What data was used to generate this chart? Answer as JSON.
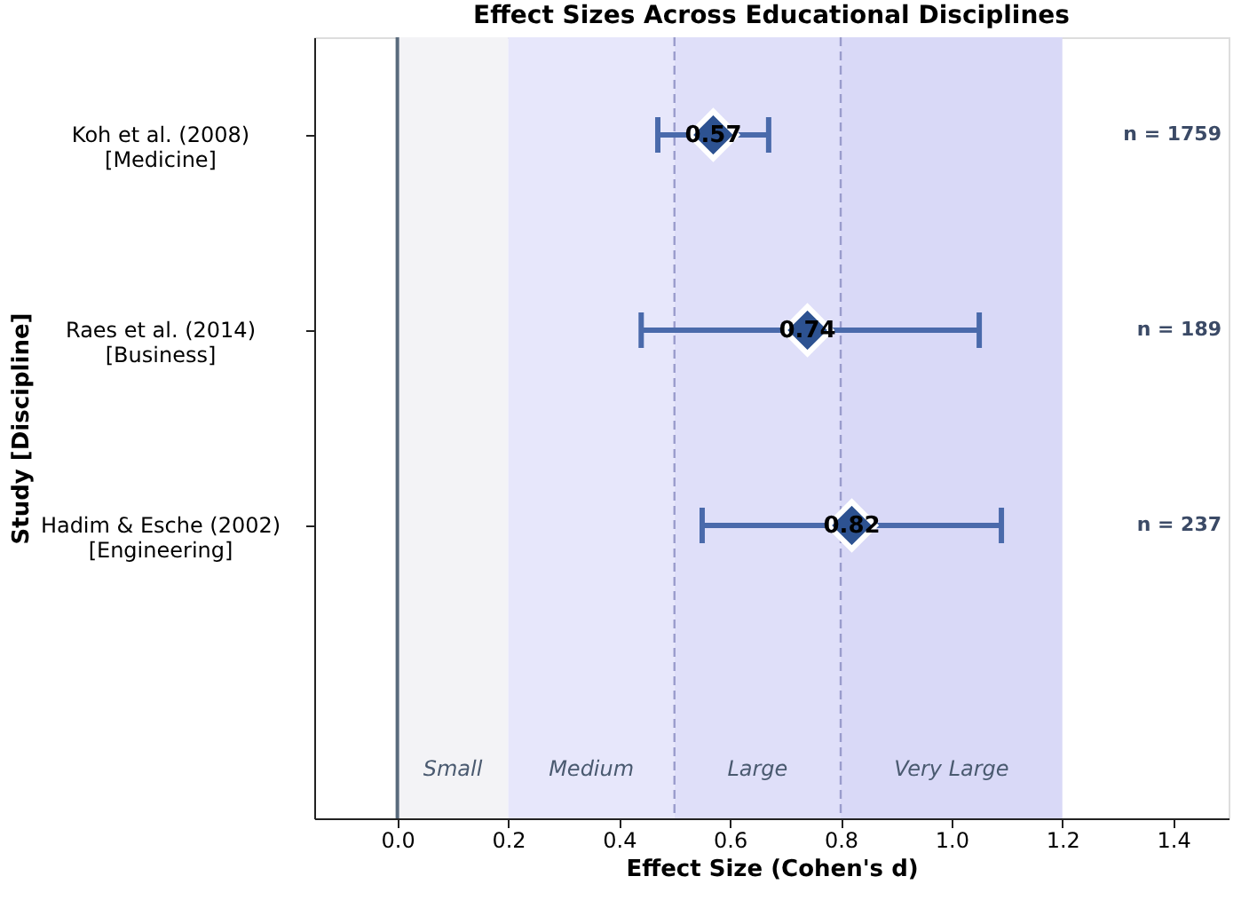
{
  "chart_data": {
    "type": "scatter",
    "title": "Effect Sizes Across Educational Disciplines",
    "xlabel": "Effect Size (Cohen's d)",
    "ylabel": "Study [Discipline]",
    "categories": [
      "Koh et al. (2008)\n[Medicine]",
      "Raes et al. (2014)\n[Business]",
      "Hadim & Esche (2002)\n[Engineering]"
    ],
    "orientation": "horizontal",
    "series": [
      {
        "color": "#2d5291",
        "values": [
          0.57,
          0.74,
          0.82
        ],
        "errors": [
          [
            0.47,
            0.67
          ],
          [
            0.44,
            1.05
          ],
          [
            0.55,
            1.09
          ]
        ]
      }
    ],
    "data_labels": true,
    "marker": "diamond",
    "grid": false,
    "xlim": [
      -0.15,
      1.5
    ],
    "xticks": [
      {
        "value": 0,
        "label": "0.0"
      },
      0.2,
      0.4,
      0.6,
      0.8,
      {
        "value": 1,
        "label": "1.0"
      },
      1.2,
      1.4
    ],
    "bands": [
      {
        "axis": "x",
        "from": 0,
        "to": 0.2,
        "label": "Small",
        "color": "#f3f3f6"
      },
      {
        "axis": "x",
        "from": 0.2,
        "to": 0.5,
        "label": "Medium",
        "color": "#e7e7fb"
      },
      {
        "axis": "x",
        "from": 0.5,
        "to": 0.8,
        "label": "Large",
        "color": "#dfdff9"
      },
      {
        "axis": "x",
        "from": 0.8,
        "to": 1.2,
        "label": "Very Large",
        "color": "#d9d9f7"
      }
    ],
    "ref_lines": [
      {
        "axis": "x",
        "value": 0,
        "color": "#5a6b7d",
        "line_style": "solid"
      },
      {
        "axis": "x",
        "value": 0.5,
        "color": "#9a9ccc",
        "line_style": "dashed"
      },
      {
        "axis": "x",
        "value": 0.8,
        "color": "#9a9ccc",
        "line_style": "dashed"
      }
    ],
    "annotations": [
      "n = 1759",
      "n = 189",
      "n = 237"
    ]
  }
}
